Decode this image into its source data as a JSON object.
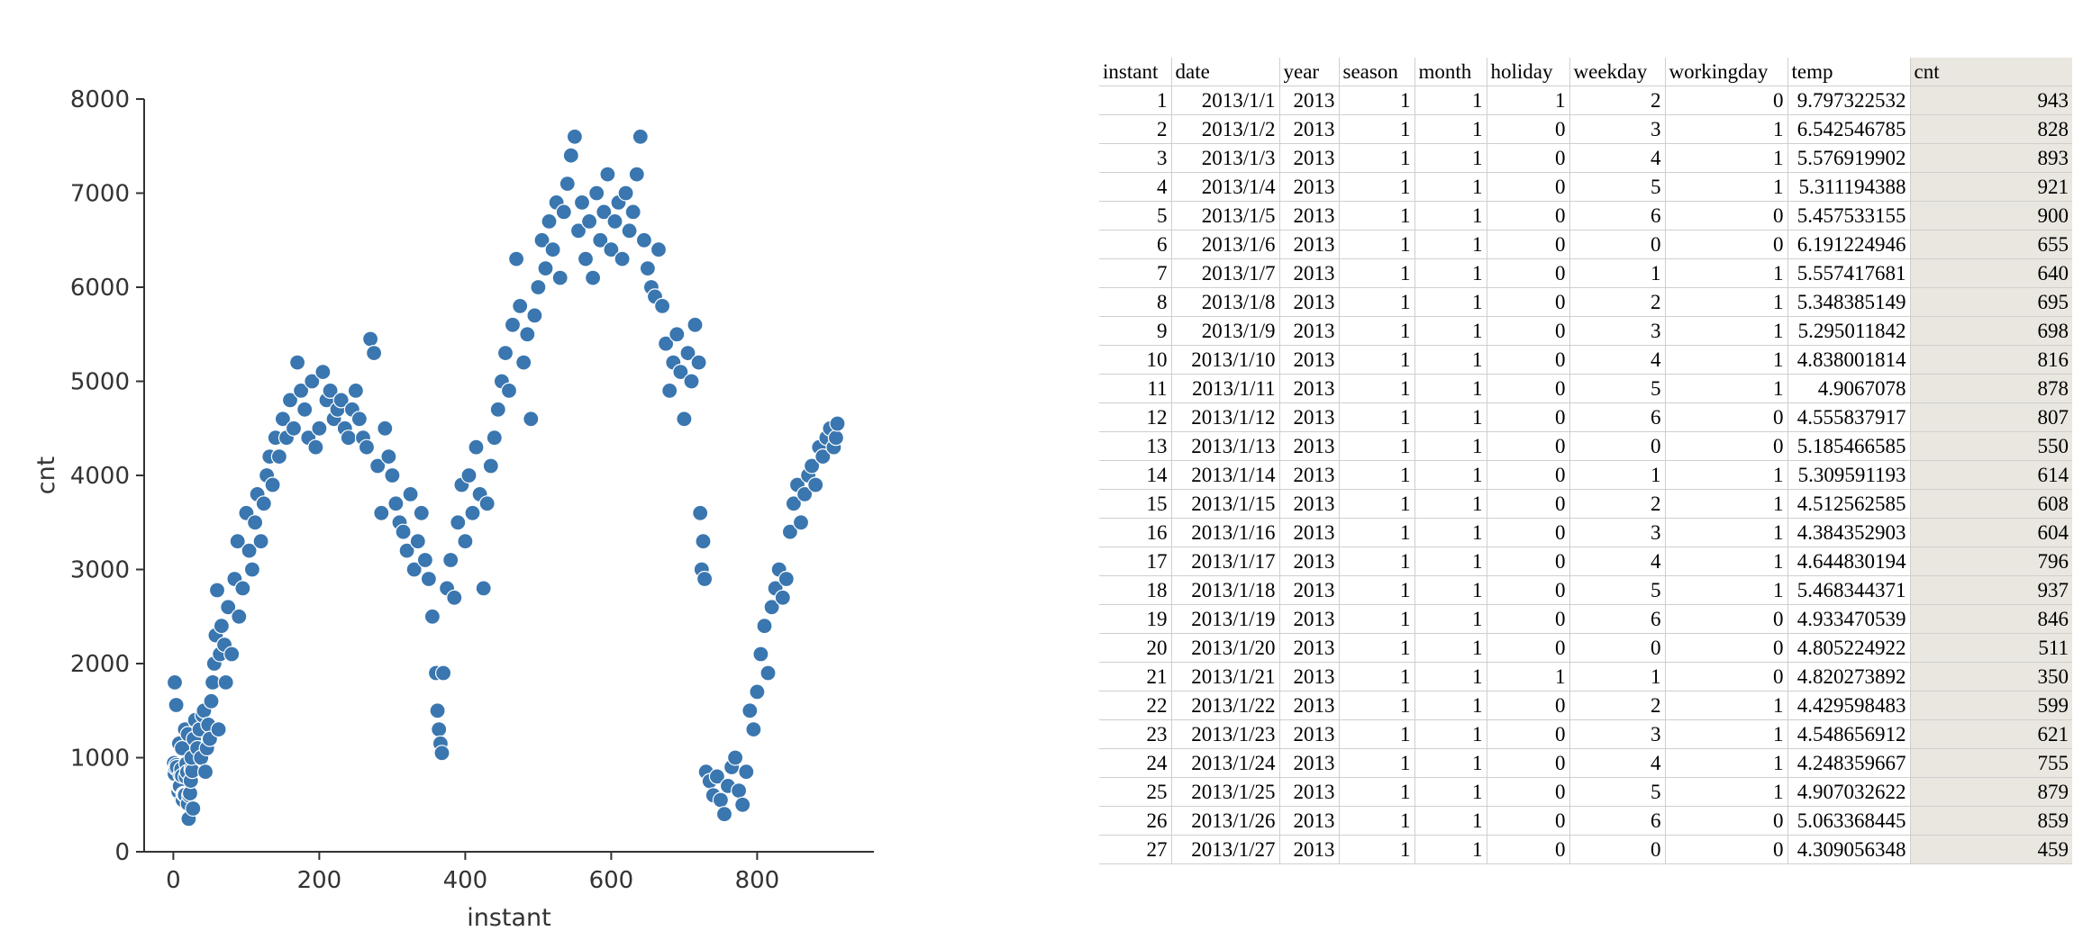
{
  "chart_data": {
    "type": "scatter",
    "xlabel": "instant",
    "ylabel": "cnt",
    "xlim": [
      -40,
      960
    ],
    "ylim": [
      0,
      8000
    ],
    "x_ticks": [
      0,
      200,
      400,
      600,
      800
    ],
    "y_ticks": [
      0,
      1000,
      2000,
      3000,
      4000,
      5000,
      6000,
      7000,
      8000
    ],
    "color": "#3a76af",
    "grid": false,
    "points": [
      [
        1,
        943
      ],
      [
        2,
        828
      ],
      [
        3,
        893
      ],
      [
        4,
        921
      ],
      [
        5,
        900
      ],
      [
        6,
        655
      ],
      [
        7,
        640
      ],
      [
        8,
        695
      ],
      [
        9,
        698
      ],
      [
        10,
        816
      ],
      [
        11,
        878
      ],
      [
        12,
        807
      ],
      [
        13,
        550
      ],
      [
        14,
        614
      ],
      [
        15,
        608
      ],
      [
        16,
        604
      ],
      [
        17,
        796
      ],
      [
        18,
        937
      ],
      [
        19,
        846
      ],
      [
        20,
        511
      ],
      [
        21,
        350
      ],
      [
        22,
        599
      ],
      [
        23,
        621
      ],
      [
        24,
        755
      ],
      [
        25,
        879
      ],
      [
        26,
        859
      ],
      [
        27,
        459
      ],
      [
        2,
        1800
      ],
      [
        4,
        1560
      ],
      [
        8,
        1150
      ],
      [
        12,
        1100
      ],
      [
        16,
        1300
      ],
      [
        20,
        1250
      ],
      [
        25,
        1000
      ],
      [
        28,
        1200
      ],
      [
        30,
        1400
      ],
      [
        33,
        1100
      ],
      [
        36,
        1300
      ],
      [
        38,
        1000
      ],
      [
        40,
        1450
      ],
      [
        42,
        1500
      ],
      [
        44,
        850
      ],
      [
        46,
        1100
      ],
      [
        48,
        1350
      ],
      [
        50,
        1200
      ],
      [
        52,
        1600
      ],
      [
        54,
        1800
      ],
      [
        56,
        2000
      ],
      [
        58,
        2300
      ],
      [
        60,
        2780
      ],
      [
        62,
        1300
      ],
      [
        64,
        2100
      ],
      [
        66,
        2400
      ],
      [
        70,
        2200
      ],
      [
        72,
        1800
      ],
      [
        75,
        2600
      ],
      [
        80,
        2100
      ],
      [
        84,
        2900
      ],
      [
        88,
        3300
      ],
      [
        90,
        2500
      ],
      [
        95,
        2800
      ],
      [
        100,
        3600
      ],
      [
        104,
        3200
      ],
      [
        108,
        3000
      ],
      [
        112,
        3500
      ],
      [
        115,
        3800
      ],
      [
        120,
        3300
      ],
      [
        124,
        3700
      ],
      [
        128,
        4000
      ],
      [
        132,
        4200
      ],
      [
        136,
        3900
      ],
      [
        140,
        4400
      ],
      [
        145,
        4200
      ],
      [
        150,
        4600
      ],
      [
        155,
        4400
      ],
      [
        160,
        4800
      ],
      [
        165,
        4500
      ],
      [
        170,
        5200
      ],
      [
        175,
        4900
      ],
      [
        180,
        4700
      ],
      [
        185,
        4400
      ],
      [
        190,
        5000
      ],
      [
        195,
        4300
      ],
      [
        200,
        4500
      ],
      [
        205,
        5100
      ],
      [
        210,
        4800
      ],
      [
        215,
        4900
      ],
      [
        220,
        4600
      ],
      [
        225,
        4700
      ],
      [
        230,
        4800
      ],
      [
        235,
        4500
      ],
      [
        240,
        4400
      ],
      [
        245,
        4700
      ],
      [
        250,
        4900
      ],
      [
        255,
        4600
      ],
      [
        260,
        4400
      ],
      [
        265,
        4300
      ],
      [
        270,
        5450
      ],
      [
        275,
        5300
      ],
      [
        280,
        4100
      ],
      [
        285,
        3600
      ],
      [
        290,
        4500
      ],
      [
        295,
        4200
      ],
      [
        300,
        4000
      ],
      [
        305,
        3700
      ],
      [
        310,
        3500
      ],
      [
        315,
        3400
      ],
      [
        320,
        3200
      ],
      [
        325,
        3800
      ],
      [
        330,
        3000
      ],
      [
        335,
        3300
      ],
      [
        340,
        3600
      ],
      [
        345,
        3100
      ],
      [
        350,
        2900
      ],
      [
        355,
        2500
      ],
      [
        360,
        1900
      ],
      [
        362,
        1500
      ],
      [
        364,
        1300
      ],
      [
        366,
        1150
      ],
      [
        368,
        1050
      ],
      [
        370,
        1900
      ],
      [
        375,
        2800
      ],
      [
        380,
        3100
      ],
      [
        385,
        2700
      ],
      [
        390,
        3500
      ],
      [
        395,
        3900
      ],
      [
        400,
        3300
      ],
      [
        405,
        4000
      ],
      [
        410,
        3600
      ],
      [
        415,
        4300
      ],
      [
        420,
        3800
      ],
      [
        425,
        2800
      ],
      [
        430,
        3700
      ],
      [
        435,
        4100
      ],
      [
        440,
        4400
      ],
      [
        445,
        4700
      ],
      [
        450,
        5000
      ],
      [
        455,
        5300
      ],
      [
        460,
        4900
      ],
      [
        465,
        5600
      ],
      [
        470,
        6300
      ],
      [
        475,
        5800
      ],
      [
        480,
        5200
      ],
      [
        485,
        5500
      ],
      [
        490,
        4600
      ],
      [
        495,
        5700
      ],
      [
        500,
        6000
      ],
      [
        505,
        6500
      ],
      [
        510,
        6200
      ],
      [
        515,
        6700
      ],
      [
        520,
        6400
      ],
      [
        525,
        6900
      ],
      [
        530,
        6100
      ],
      [
        535,
        6800
      ],
      [
        540,
        7100
      ],
      [
        545,
        7400
      ],
      [
        550,
        7600
      ],
      [
        555,
        6600
      ],
      [
        560,
        6900
      ],
      [
        565,
        6300
      ],
      [
        570,
        6700
      ],
      [
        575,
        6100
      ],
      [
        580,
        7000
      ],
      [
        585,
        6500
      ],
      [
        590,
        6800
      ],
      [
        595,
        7200
      ],
      [
        600,
        6400
      ],
      [
        605,
        6700
      ],
      [
        610,
        6900
      ],
      [
        615,
        6300
      ],
      [
        620,
        7000
      ],
      [
        625,
        6600
      ],
      [
        630,
        6800
      ],
      [
        635,
        7200
      ],
      [
        640,
        7600
      ],
      [
        645,
        6500
      ],
      [
        650,
        6200
      ],
      [
        655,
        6000
      ],
      [
        660,
        5900
      ],
      [
        665,
        6400
      ],
      [
        670,
        5800
      ],
      [
        675,
        5400
      ],
      [
        680,
        4900
      ],
      [
        685,
        5200
      ],
      [
        690,
        5500
      ],
      [
        695,
        5100
      ],
      [
        700,
        4600
      ],
      [
        705,
        5300
      ],
      [
        710,
        5000
      ],
      [
        715,
        5600
      ],
      [
        720,
        5200
      ],
      [
        722,
        3600
      ],
      [
        724,
        3000
      ],
      [
        726,
        3300
      ],
      [
        728,
        2900
      ],
      [
        730,
        850
      ],
      [
        735,
        750
      ],
      [
        740,
        600
      ],
      [
        745,
        800
      ],
      [
        750,
        550
      ],
      [
        755,
        400
      ],
      [
        760,
        700
      ],
      [
        765,
        900
      ],
      [
        770,
        1000
      ],
      [
        775,
        650
      ],
      [
        780,
        500
      ],
      [
        785,
        850
      ],
      [
        790,
        1500
      ],
      [
        795,
        1300
      ],
      [
        800,
        1700
      ],
      [
        805,
        2100
      ],
      [
        810,
        2400
      ],
      [
        815,
        1900
      ],
      [
        820,
        2600
      ],
      [
        825,
        2800
      ],
      [
        830,
        3000
      ],
      [
        835,
        2700
      ],
      [
        840,
        2900
      ],
      [
        845,
        3400
      ],
      [
        850,
        3700
      ],
      [
        855,
        3900
      ],
      [
        860,
        3500
      ],
      [
        865,
        3800
      ],
      [
        870,
        4000
      ],
      [
        875,
        4100
      ],
      [
        880,
        3900
      ],
      [
        885,
        4300
      ],
      [
        890,
        4200
      ],
      [
        895,
        4400
      ],
      [
        900,
        4500
      ],
      [
        905,
        4300
      ],
      [
        908,
        4400
      ],
      [
        910,
        4550
      ]
    ]
  },
  "table": {
    "headers": [
      "instant",
      "date",
      "year",
      "season",
      "month",
      "holiday",
      "weekday",
      "workingday",
      "temp",
      "cnt"
    ],
    "rows": [
      [
        "1",
        "2013/1/1",
        "2013",
        "1",
        "1",
        "1",
        "2",
        "0",
        "9.797322532",
        "943"
      ],
      [
        "2",
        "2013/1/2",
        "2013",
        "1",
        "1",
        "0",
        "3",
        "1",
        "6.542546785",
        "828"
      ],
      [
        "3",
        "2013/1/3",
        "2013",
        "1",
        "1",
        "0",
        "4",
        "1",
        "5.576919902",
        "893"
      ],
      [
        "4",
        "2013/1/4",
        "2013",
        "1",
        "1",
        "0",
        "5",
        "1",
        "5.311194388",
        "921"
      ],
      [
        "5",
        "2013/1/5",
        "2013",
        "1",
        "1",
        "0",
        "6",
        "0",
        "5.457533155",
        "900"
      ],
      [
        "6",
        "2013/1/6",
        "2013",
        "1",
        "1",
        "0",
        "0",
        "0",
        "6.191224946",
        "655"
      ],
      [
        "7",
        "2013/1/7",
        "2013",
        "1",
        "1",
        "0",
        "1",
        "1",
        "5.557417681",
        "640"
      ],
      [
        "8",
        "2013/1/8",
        "2013",
        "1",
        "1",
        "0",
        "2",
        "1",
        "5.348385149",
        "695"
      ],
      [
        "9",
        "2013/1/9",
        "2013",
        "1",
        "1",
        "0",
        "3",
        "1",
        "5.295011842",
        "698"
      ],
      [
        "10",
        "2013/1/10",
        "2013",
        "1",
        "1",
        "0",
        "4",
        "1",
        "4.838001814",
        "816"
      ],
      [
        "11",
        "2013/1/11",
        "2013",
        "1",
        "1",
        "0",
        "5",
        "1",
        "4.9067078",
        "878"
      ],
      [
        "12",
        "2013/1/12",
        "2013",
        "1",
        "1",
        "0",
        "6",
        "0",
        "4.555837917",
        "807"
      ],
      [
        "13",
        "2013/1/13",
        "2013",
        "1",
        "1",
        "0",
        "0",
        "0",
        "5.185466585",
        "550"
      ],
      [
        "14",
        "2013/1/14",
        "2013",
        "1",
        "1",
        "0",
        "1",
        "1",
        "5.309591193",
        "614"
      ],
      [
        "15",
        "2013/1/15",
        "2013",
        "1",
        "1",
        "0",
        "2",
        "1",
        "4.512562585",
        "608"
      ],
      [
        "16",
        "2013/1/16",
        "2013",
        "1",
        "1",
        "0",
        "3",
        "1",
        "4.384352903",
        "604"
      ],
      [
        "17",
        "2013/1/17",
        "2013",
        "1",
        "1",
        "0",
        "4",
        "1",
        "4.644830194",
        "796"
      ],
      [
        "18",
        "2013/1/18",
        "2013",
        "1",
        "1",
        "0",
        "5",
        "1",
        "5.468344371",
        "937"
      ],
      [
        "19",
        "2013/1/19",
        "2013",
        "1",
        "1",
        "0",
        "6",
        "0",
        "4.933470539",
        "846"
      ],
      [
        "20",
        "2013/1/20",
        "2013",
        "1",
        "1",
        "0",
        "0",
        "0",
        "4.805224922",
        "511"
      ],
      [
        "21",
        "2013/1/21",
        "2013",
        "1",
        "1",
        "1",
        "1",
        "0",
        "4.820273892",
        "350"
      ],
      [
        "22",
        "2013/1/22",
        "2013",
        "1",
        "1",
        "0",
        "2",
        "1",
        "4.429598483",
        "599"
      ],
      [
        "23",
        "2013/1/23",
        "2013",
        "1",
        "1",
        "0",
        "3",
        "1",
        "4.548656912",
        "621"
      ],
      [
        "24",
        "2013/1/24",
        "2013",
        "1",
        "1",
        "0",
        "4",
        "1",
        "4.248359667",
        "755"
      ],
      [
        "25",
        "2013/1/25",
        "2013",
        "1",
        "1",
        "0",
        "5",
        "1",
        "4.907032622",
        "879"
      ],
      [
        "26",
        "2013/1/26",
        "2013",
        "1",
        "1",
        "0",
        "6",
        "0",
        "5.063368445",
        "859"
      ],
      [
        "27",
        "2013/1/27",
        "2013",
        "1",
        "1",
        "0",
        "0",
        "0",
        "4.309056348",
        "459"
      ]
    ]
  }
}
